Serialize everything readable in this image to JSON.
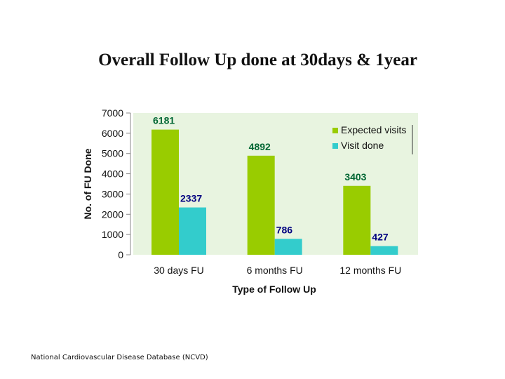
{
  "slide": {
    "title": "Overall Follow Up done at 30days & 1year",
    "footnote": "National Cardiovascular Disease Database (NCVD)"
  },
  "chart_data": {
    "type": "bar",
    "categories": [
      "30 days FU",
      "6 months FU",
      "12 months FU"
    ],
    "series": [
      {
        "name": "Expected visits",
        "values": [
          6181,
          4892,
          3403
        ],
        "color": "#99cc00",
        "label_color": "#006633"
      },
      {
        "name": "Visit done",
        "values": [
          2337,
          786,
          427
        ],
        "color": "#33cccc",
        "label_color": "#000080"
      }
    ],
    "xlabel": "Type of Follow Up",
    "ylabel": "No. of FU Done",
    "ylim": [
      0,
      7000
    ],
    "yticks": [
      0,
      1000,
      2000,
      3000,
      4000,
      5000,
      6000,
      7000
    ],
    "plot_background": "#e8f4e0",
    "grid": false,
    "legend_position": "top-right"
  }
}
